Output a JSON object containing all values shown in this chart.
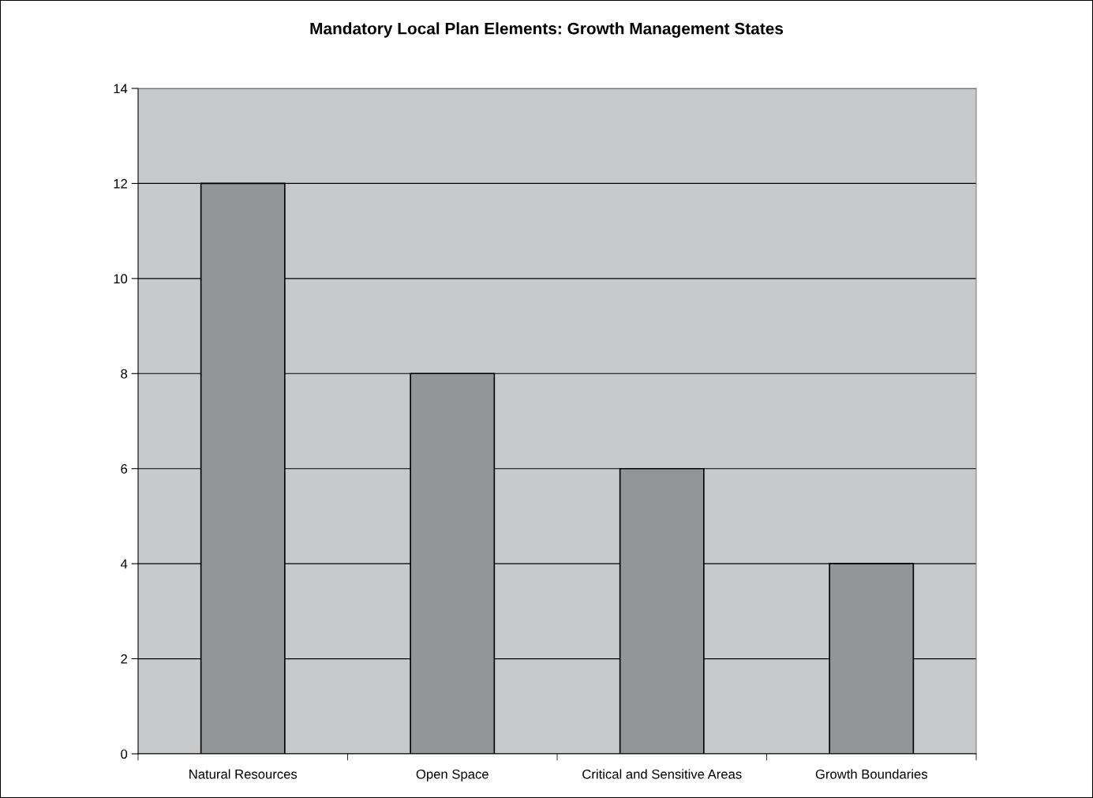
{
  "chart_data": {
    "type": "bar",
    "title": "Mandatory Local Plan Elements: Growth Management States",
    "categories": [
      "Natural Resources",
      "Open Space",
      "Critical and Sensitive Areas",
      "Growth Boundaries"
    ],
    "values": [
      12,
      8,
      6,
      4
    ],
    "color": "#939598",
    "ylim": [
      0,
      14
    ],
    "yticks": [
      0,
      2,
      4,
      6,
      8,
      10,
      12,
      14
    ],
    "grid": "y",
    "legend": false
  }
}
